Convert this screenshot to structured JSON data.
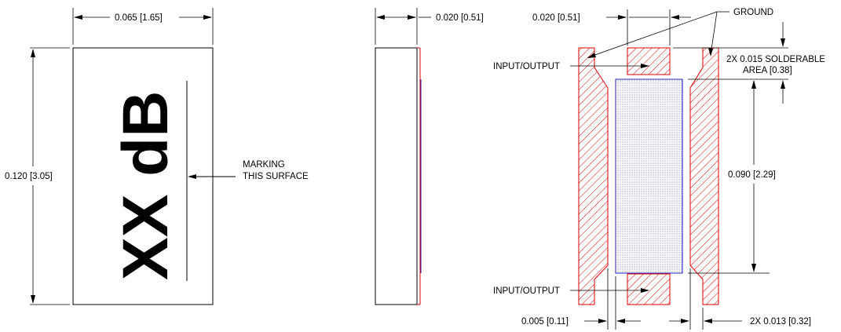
{
  "top_view": {
    "marking": "XX dB",
    "width_dim": "0.065 [1.65]",
    "height_dim": "0.120 [3.05]",
    "marking_note_line1": "MARKING",
    "marking_note_line2": "THIS SURFACE"
  },
  "side_view": {
    "thickness_dim": "0.020 [0.51]"
  },
  "bottom_view": {
    "pad_width_dim": "0.020 [0.51]",
    "ground_label": "GROUND",
    "input_output_top": "INPUT/OUTPUT",
    "input_output_bottom": "INPUT/OUTPUT",
    "solderable_line1": "2X 0.015 SOLDERABLE",
    "solderable_line2": "AREA [0.38]",
    "length_dim": "0.090 [2.29]",
    "gap_dim": "0.005 [0.11]",
    "side_pad_dim": "2X 0.013 [0.32]"
  },
  "colors": {
    "pad_hatch": "#e00000",
    "resistor_outline": "#2020c0",
    "line": "#000000"
  }
}
